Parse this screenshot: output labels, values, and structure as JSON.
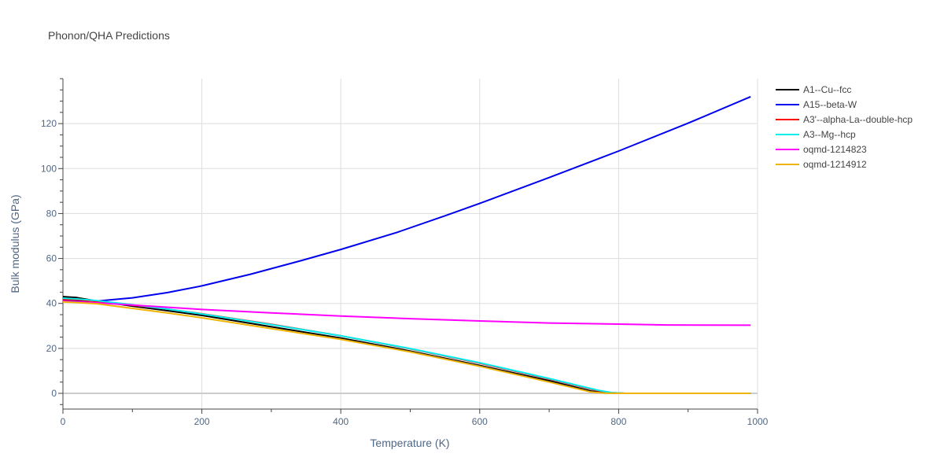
{
  "chart_data": {
    "type": "line",
    "title": "Phonon/QHA Predictions",
    "xlabel": "Temperature (K)",
    "ylabel": "Bulk modulus (GPa)",
    "xlim": [
      0,
      1000
    ],
    "ylim": [
      -7,
      140
    ],
    "xticks": [
      0,
      200,
      400,
      600,
      800,
      1000
    ],
    "yticks": [
      0,
      20,
      40,
      60,
      80,
      100,
      120
    ],
    "grid": true,
    "legend_position": "top-right, outside plot",
    "series": [
      {
        "name": "A1--Cu--fcc",
        "color": "#000000",
        "x": [
          0,
          20,
          50,
          100,
          150,
          200,
          300,
          400,
          500,
          600,
          700,
          760,
          780,
          800,
          850,
          900,
          990
        ],
        "y": [
          43.0,
          42.6,
          41.0,
          38.8,
          36.8,
          34.7,
          29.6,
          24.6,
          18.8,
          12.4,
          5.6,
          1.0,
          0.2,
          0,
          0,
          0,
          0
        ]
      },
      {
        "name": "A15--beta-W",
        "color": "#0000ee",
        "x": [
          0,
          20,
          50,
          100,
          150,
          200,
          270,
          340,
          400,
          480,
          550,
          600,
          700,
          800,
          900,
          990
        ],
        "y": [
          41.5,
          41.2,
          41.1,
          42.5,
          44.8,
          47.8,
          53.0,
          58.8,
          64.0,
          71.5,
          79.0,
          84.5,
          96.0,
          107.8,
          120.2,
          132.0
        ]
      },
      {
        "name": "A3'--alpha-La--double-hcp",
        "color": "#ff0000",
        "x": [
          0,
          20,
          50,
          100,
          150,
          200,
          300,
          400,
          500,
          600,
          700,
          770,
          790,
          810,
          850,
          900,
          990
        ],
        "y": [
          41.8,
          41.6,
          40.8,
          39.2,
          37.5,
          35.4,
          30.7,
          25.6,
          19.8,
          13.4,
          6.4,
          1.2,
          0.3,
          0,
          0,
          0,
          0
        ]
      },
      {
        "name": "A3--Mg--hcp",
        "color": "#00eeee",
        "x": [
          0,
          20,
          50,
          100,
          150,
          200,
          300,
          400,
          500,
          600,
          700,
          770,
          790,
          810,
          850,
          900,
          990
        ],
        "y": [
          42.3,
          42.0,
          41.2,
          39.4,
          37.5,
          35.3,
          30.6,
          25.6,
          19.9,
          13.6,
          6.6,
          1.4,
          0.3,
          0,
          0,
          0,
          0
        ]
      },
      {
        "name": "oqmd-1214823",
        "color": "#ff00ff",
        "x": [
          0,
          20,
          50,
          100,
          200,
          300,
          400,
          500,
          600,
          700,
          800,
          870,
          990
        ],
        "y": [
          41.0,
          40.7,
          40.2,
          39.3,
          37.3,
          35.8,
          34.4,
          33.2,
          32.2,
          31.3,
          30.8,
          30.4,
          30.3
        ]
      },
      {
        "name": "oqmd-1214912",
        "color": "#f0b400",
        "x": [
          0,
          20,
          50,
          100,
          150,
          200,
          300,
          400,
          500,
          600,
          700,
          760,
          780,
          800,
          850,
          900,
          990
        ],
        "y": [
          40.7,
          40.4,
          39.8,
          37.8,
          35.8,
          33.6,
          28.8,
          24.0,
          18.4,
          12.0,
          5.0,
          0.6,
          0.1,
          0,
          0,
          0,
          0
        ]
      }
    ]
  }
}
